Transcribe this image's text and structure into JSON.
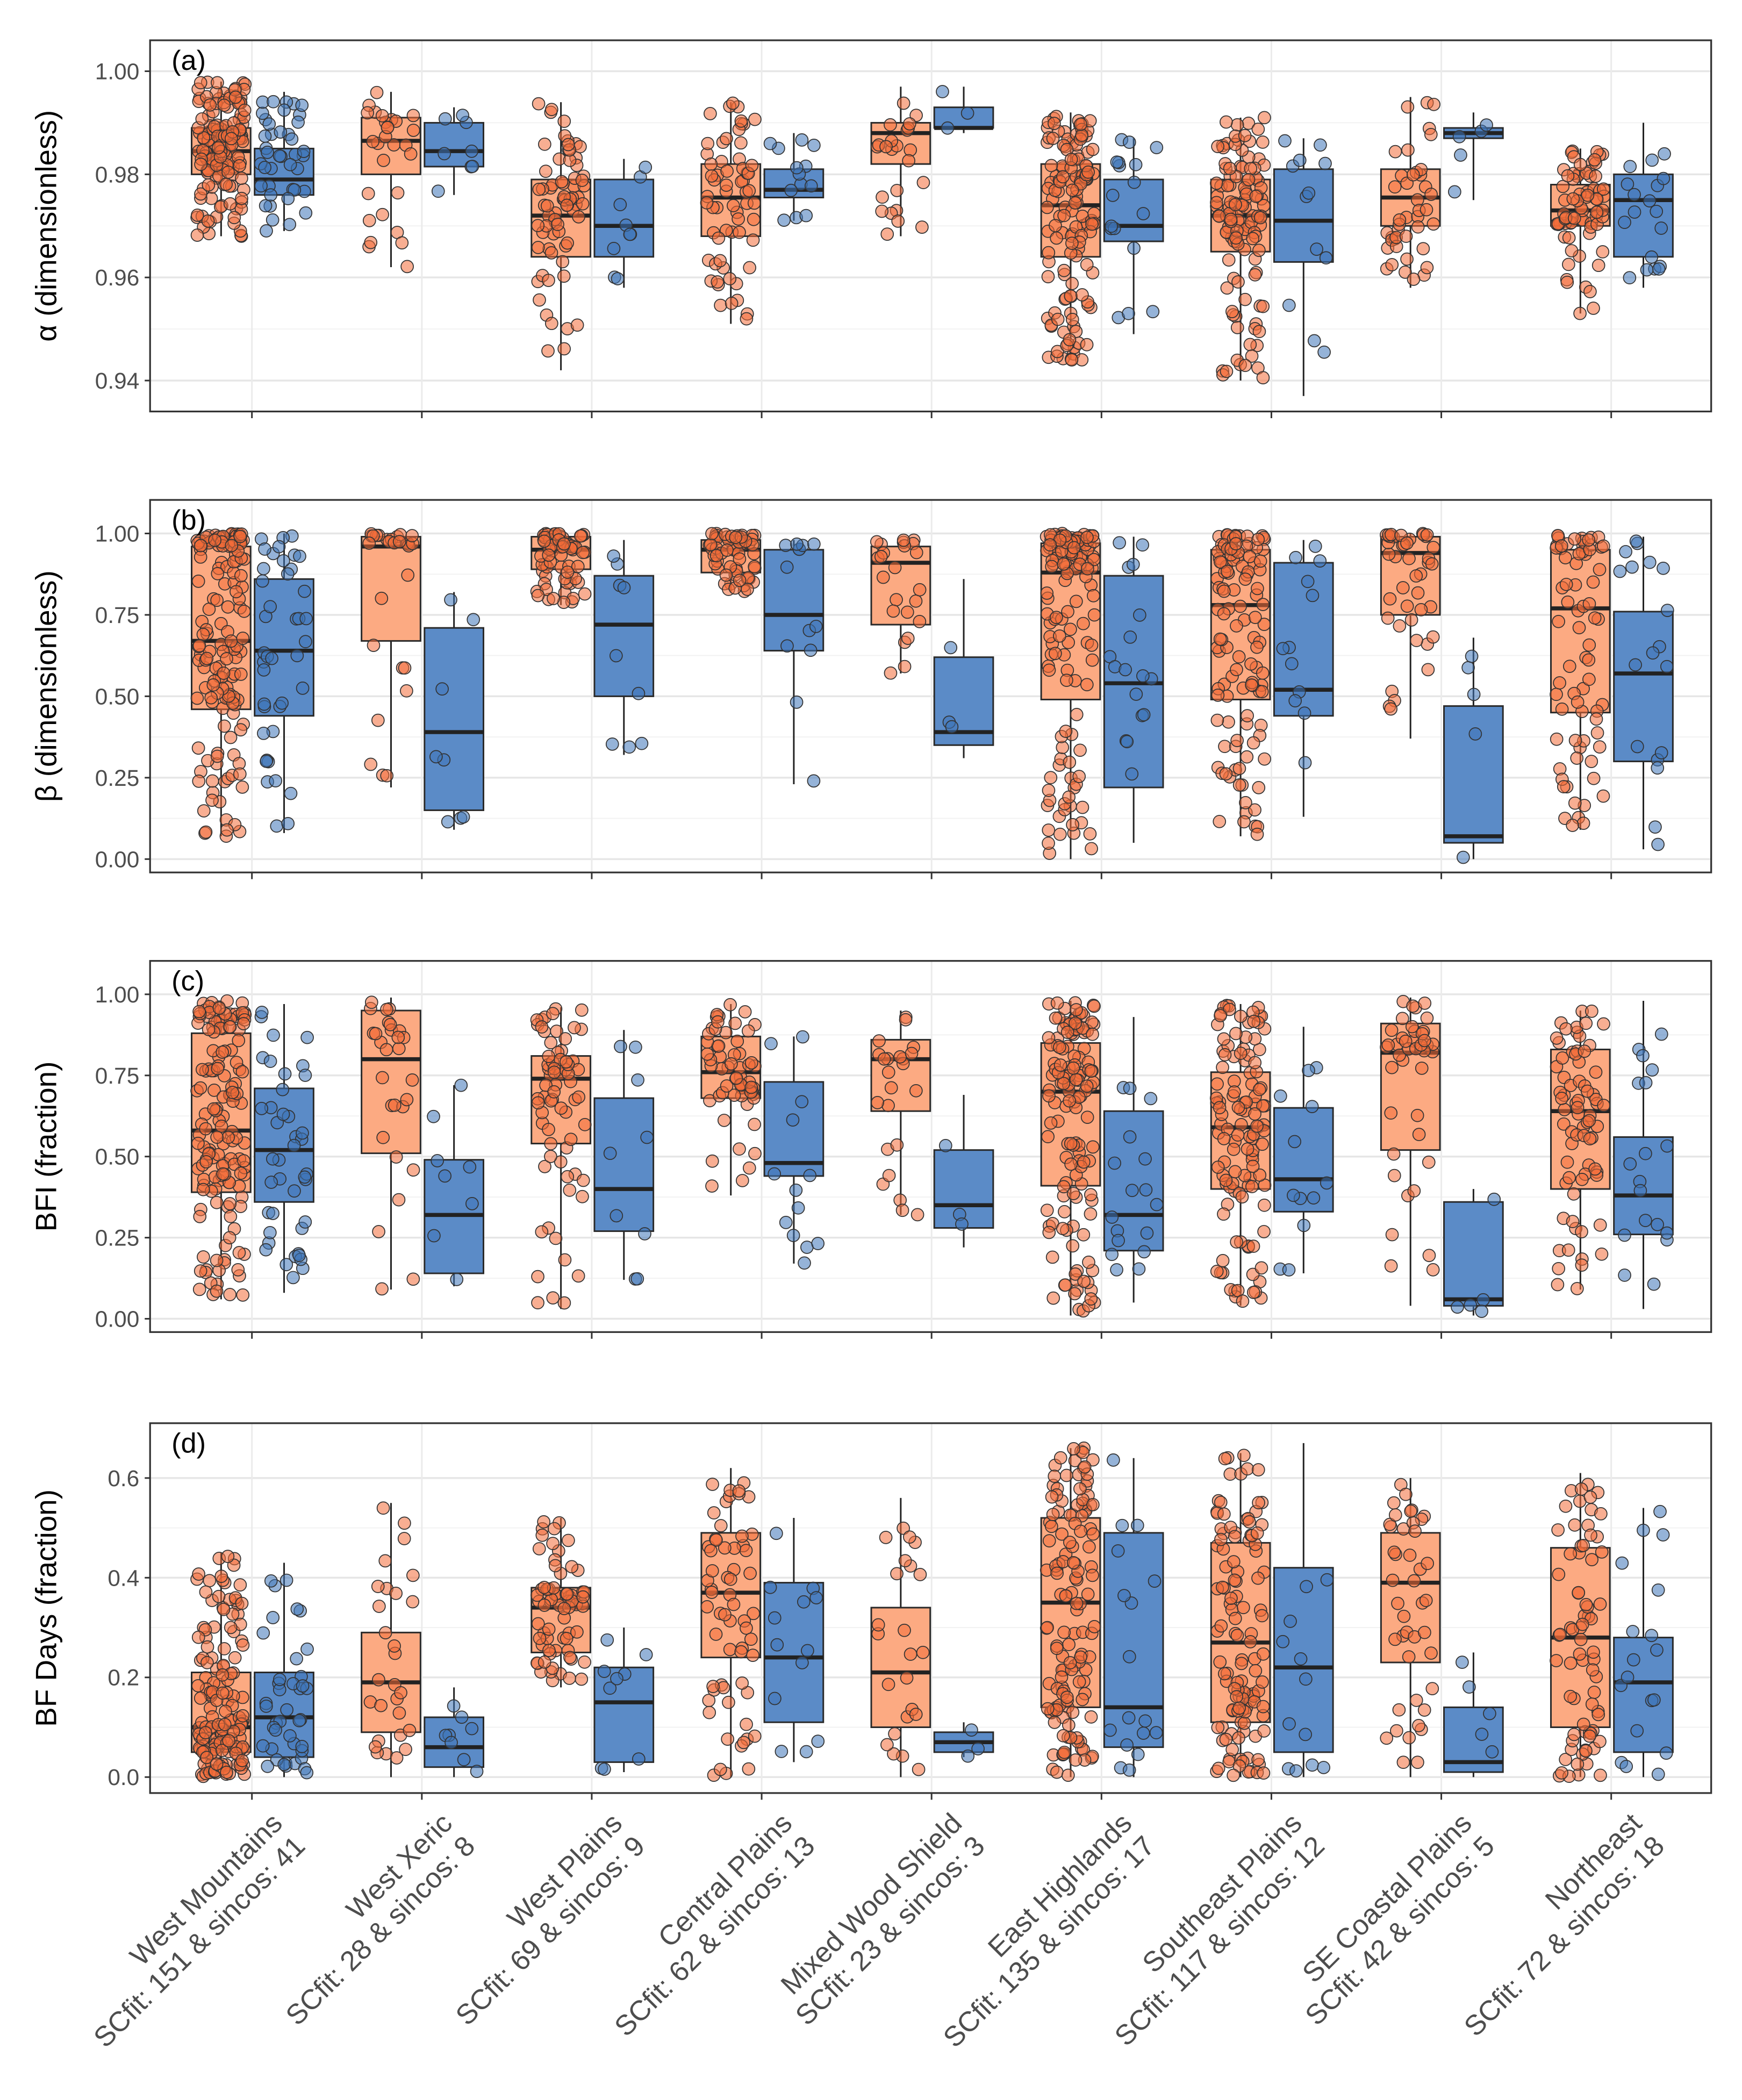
{
  "chart_data": {
    "type": "box",
    "categories": [
      {
        "region": "West Mountains",
        "detail": "SCfit: 151 & sincos: 41",
        "n_scfit": 151,
        "n_sincos": 41
      },
      {
        "region": "West Xeric",
        "detail": "SCfit: 28 & sincos: 8",
        "n_scfit": 28,
        "n_sincos": 8
      },
      {
        "region": "West Plains",
        "detail": "SCfit: 69 & sincos: 9",
        "n_scfit": 69,
        "n_sincos": 9
      },
      {
        "region": "Central Plains",
        "detail": "SCfit: 62 & sincos: 13",
        "n_scfit": 62,
        "n_sincos": 13
      },
      {
        "region": "Mixed Wood Shield",
        "detail": "SCfit: 23 & sincos: 3",
        "n_scfit": 23,
        "n_sincos": 3
      },
      {
        "region": "East Highlands",
        "detail": "SCfit: 135 & sincos: 17",
        "n_scfit": 135,
        "n_sincos": 17
      },
      {
        "region": "Southeast Plains",
        "detail": "SCfit: 117 & sincos: 12",
        "n_scfit": 117,
        "n_sincos": 12
      },
      {
        "region": "SE Coastal Plains",
        "detail": "SCfit: 42 & sincos: 5",
        "n_scfit": 42,
        "n_sincos": 5
      },
      {
        "region": "Northeast",
        "detail": "SCfit: 72 & sincos: 18",
        "n_scfit": 72,
        "n_sincos": 18
      }
    ],
    "series_colors": {
      "SCfit_box": "#FCAA82",
      "SCfit_point": "#F26B38",
      "sincos_box": "#5B8BC7",
      "sincos_point": "#3E74B8"
    },
    "stat_order": [
      "min_whisker",
      "q1",
      "median",
      "q3",
      "max_whisker"
    ],
    "panels": [
      {
        "tag": "(a)",
        "ylabel": "α (dimensionless)",
        "ylim": [
          0.934,
          1.006
        ],
        "ticks": [
          0.94,
          0.96,
          0.98,
          1.0
        ],
        "tick_labels": [
          "0.94",
          "0.96",
          "0.98",
          "1.00"
        ],
        "SCfit": [
          [
            0.968,
            0.98,
            0.9845,
            0.989,
            0.998
          ],
          [
            0.962,
            0.98,
            0.9865,
            0.991,
            0.996
          ],
          [
            0.942,
            0.964,
            0.972,
            0.979,
            0.994
          ],
          [
            0.951,
            0.968,
            0.9755,
            0.982,
            0.994
          ],
          [
            0.968,
            0.982,
            0.988,
            0.99,
            0.997
          ],
          [
            0.944,
            0.964,
            0.974,
            0.982,
            0.992
          ],
          [
            0.94,
            0.965,
            0.972,
            0.979,
            0.991
          ],
          [
            0.958,
            0.97,
            0.9755,
            0.981,
            0.995
          ],
          [
            0.953,
            0.97,
            0.973,
            0.978,
            0.985
          ]
        ],
        "sincos": [
          [
            0.969,
            0.976,
            0.979,
            0.985,
            0.996
          ],
          [
            0.976,
            0.9815,
            0.9845,
            0.99,
            0.993
          ],
          [
            0.958,
            0.964,
            0.97,
            0.979,
            0.983
          ],
          [
            0.971,
            0.9755,
            0.977,
            0.981,
            0.988
          ],
          [
            0.988,
            0.989,
            0.989,
            0.993,
            0.997
          ],
          [
            0.949,
            0.967,
            0.97,
            0.979,
            0.987
          ],
          [
            0.937,
            0.963,
            0.971,
            0.981,
            0.987
          ],
          [
            0.975,
            0.987,
            0.988,
            0.989,
            0.992
          ],
          [
            0.958,
            0.964,
            0.975,
            0.98,
            0.99
          ]
        ]
      },
      {
        "tag": "(b)",
        "ylabel": "β (dimensionless)",
        "ylim": [
          -0.041,
          1.103
        ],
        "ticks": [
          0,
          0.25,
          0.5,
          0.75,
          1.0
        ],
        "tick_labels": [
          "0.00",
          "0.25",
          "0.50",
          "0.75",
          "1.00"
        ],
        "SCfit": [
          [
            0.07,
            0.46,
            0.67,
            0.96,
            1.0
          ],
          [
            0.22,
            0.67,
            0.96,
            0.99,
            1.0
          ],
          [
            0.78,
            0.89,
            0.95,
            0.99,
            1.0
          ],
          [
            0.82,
            0.88,
            0.95,
            0.98,
            1.0
          ],
          [
            0.57,
            0.72,
            0.91,
            0.96,
            0.98
          ],
          [
            0.0,
            0.49,
            0.88,
            0.97,
            1.0
          ],
          [
            0.07,
            0.49,
            0.78,
            0.95,
            1.0
          ],
          [
            0.37,
            0.75,
            0.94,
            0.99,
            1.0
          ],
          [
            0.09,
            0.45,
            0.77,
            0.95,
            1.0
          ]
        ],
        "sincos": [
          [
            0.08,
            0.44,
            0.64,
            0.86,
            1.0
          ],
          [
            0.09,
            0.15,
            0.39,
            0.71,
            0.82
          ],
          [
            0.32,
            0.5,
            0.72,
            0.87,
            0.98
          ],
          [
            0.23,
            0.64,
            0.75,
            0.95,
            0.98
          ],
          [
            0.31,
            0.35,
            0.39,
            0.62,
            0.86
          ],
          [
            0.05,
            0.22,
            0.54,
            0.87,
            0.99
          ],
          [
            0.13,
            0.44,
            0.52,
            0.91,
            0.98
          ],
          [
            0.0,
            0.05,
            0.07,
            0.47,
            0.68
          ],
          [
            0.03,
            0.3,
            0.57,
            0.76,
            0.99
          ]
        ]
      },
      {
        "tag": "(c)",
        "ylabel": "BFI (fraction)",
        "ylim": [
          -0.041,
          1.103
        ],
        "ticks": [
          0,
          0.25,
          0.5,
          0.75,
          1.0
        ],
        "tick_labels": [
          "0.00",
          "0.25",
          "0.50",
          "0.75",
          "1.00"
        ],
        "SCfit": [
          [
            0.06,
            0.39,
            0.58,
            0.88,
            0.98
          ],
          [
            0.09,
            0.51,
            0.8,
            0.95,
            0.99
          ],
          [
            0.03,
            0.54,
            0.74,
            0.81,
            0.96
          ],
          [
            0.38,
            0.68,
            0.76,
            0.87,
            0.97
          ],
          [
            0.32,
            0.64,
            0.8,
            0.86,
            0.95
          ],
          [
            0.01,
            0.41,
            0.7,
            0.85,
            0.98
          ],
          [
            0.04,
            0.4,
            0.59,
            0.76,
            0.97
          ],
          [
            0.04,
            0.52,
            0.82,
            0.91,
            0.99
          ],
          [
            0.09,
            0.4,
            0.64,
            0.83,
            0.95
          ]
        ],
        "sincos": [
          [
            0.08,
            0.36,
            0.52,
            0.71,
            0.97
          ],
          [
            0.1,
            0.14,
            0.32,
            0.49,
            0.72
          ],
          [
            0.12,
            0.27,
            0.4,
            0.68,
            0.89
          ],
          [
            0.17,
            0.44,
            0.48,
            0.73,
            0.87
          ],
          [
            0.22,
            0.28,
            0.35,
            0.52,
            0.69
          ],
          [
            0.05,
            0.21,
            0.32,
            0.64,
            0.93
          ],
          [
            0.14,
            0.33,
            0.43,
            0.65,
            0.9
          ],
          [
            0.01,
            0.04,
            0.06,
            0.36,
            0.4
          ],
          [
            0.03,
            0.26,
            0.38,
            0.56,
            0.98
          ]
        ]
      },
      {
        "tag": "(d)",
        "ylabel": "BF Days (fraction)",
        "ylim": [
          -0.032,
          0.71
        ],
        "ticks": [
          0,
          0.2,
          0.4,
          0.6
        ],
        "tick_labels": [
          "0.0",
          "0.2",
          "0.4",
          "0.6"
        ],
        "SCfit": [
          [
            0.0,
            0.05,
            0.1,
            0.21,
            0.45
          ],
          [
            0.0,
            0.09,
            0.19,
            0.29,
            0.55
          ],
          [
            0.18,
            0.25,
            0.34,
            0.38,
            0.52
          ],
          [
            0.0,
            0.24,
            0.37,
            0.49,
            0.62
          ],
          [
            0.0,
            0.1,
            0.21,
            0.34,
            0.56
          ],
          [
            0.0,
            0.14,
            0.35,
            0.52,
            0.66
          ],
          [
            0.0,
            0.11,
            0.27,
            0.47,
            0.65
          ],
          [
            0.0,
            0.23,
            0.39,
            0.49,
            0.6
          ],
          [
            0.0,
            0.1,
            0.28,
            0.46,
            0.61
          ]
        ],
        "sincos": [
          [
            0.0,
            0.04,
            0.12,
            0.21,
            0.43
          ],
          [
            0.0,
            0.02,
            0.06,
            0.12,
            0.18
          ],
          [
            0.01,
            0.03,
            0.15,
            0.22,
            0.3
          ],
          [
            0.03,
            0.11,
            0.24,
            0.39,
            0.52
          ],
          [
            0.04,
            0.05,
            0.07,
            0.09,
            0.11
          ],
          [
            0.0,
            0.06,
            0.14,
            0.49,
            0.64
          ],
          [
            0.0,
            0.05,
            0.22,
            0.42,
            0.67
          ],
          [
            0.0,
            0.01,
            0.03,
            0.14,
            0.25
          ],
          [
            0.0,
            0.05,
            0.19,
            0.28,
            0.54
          ]
        ]
      }
    ]
  }
}
